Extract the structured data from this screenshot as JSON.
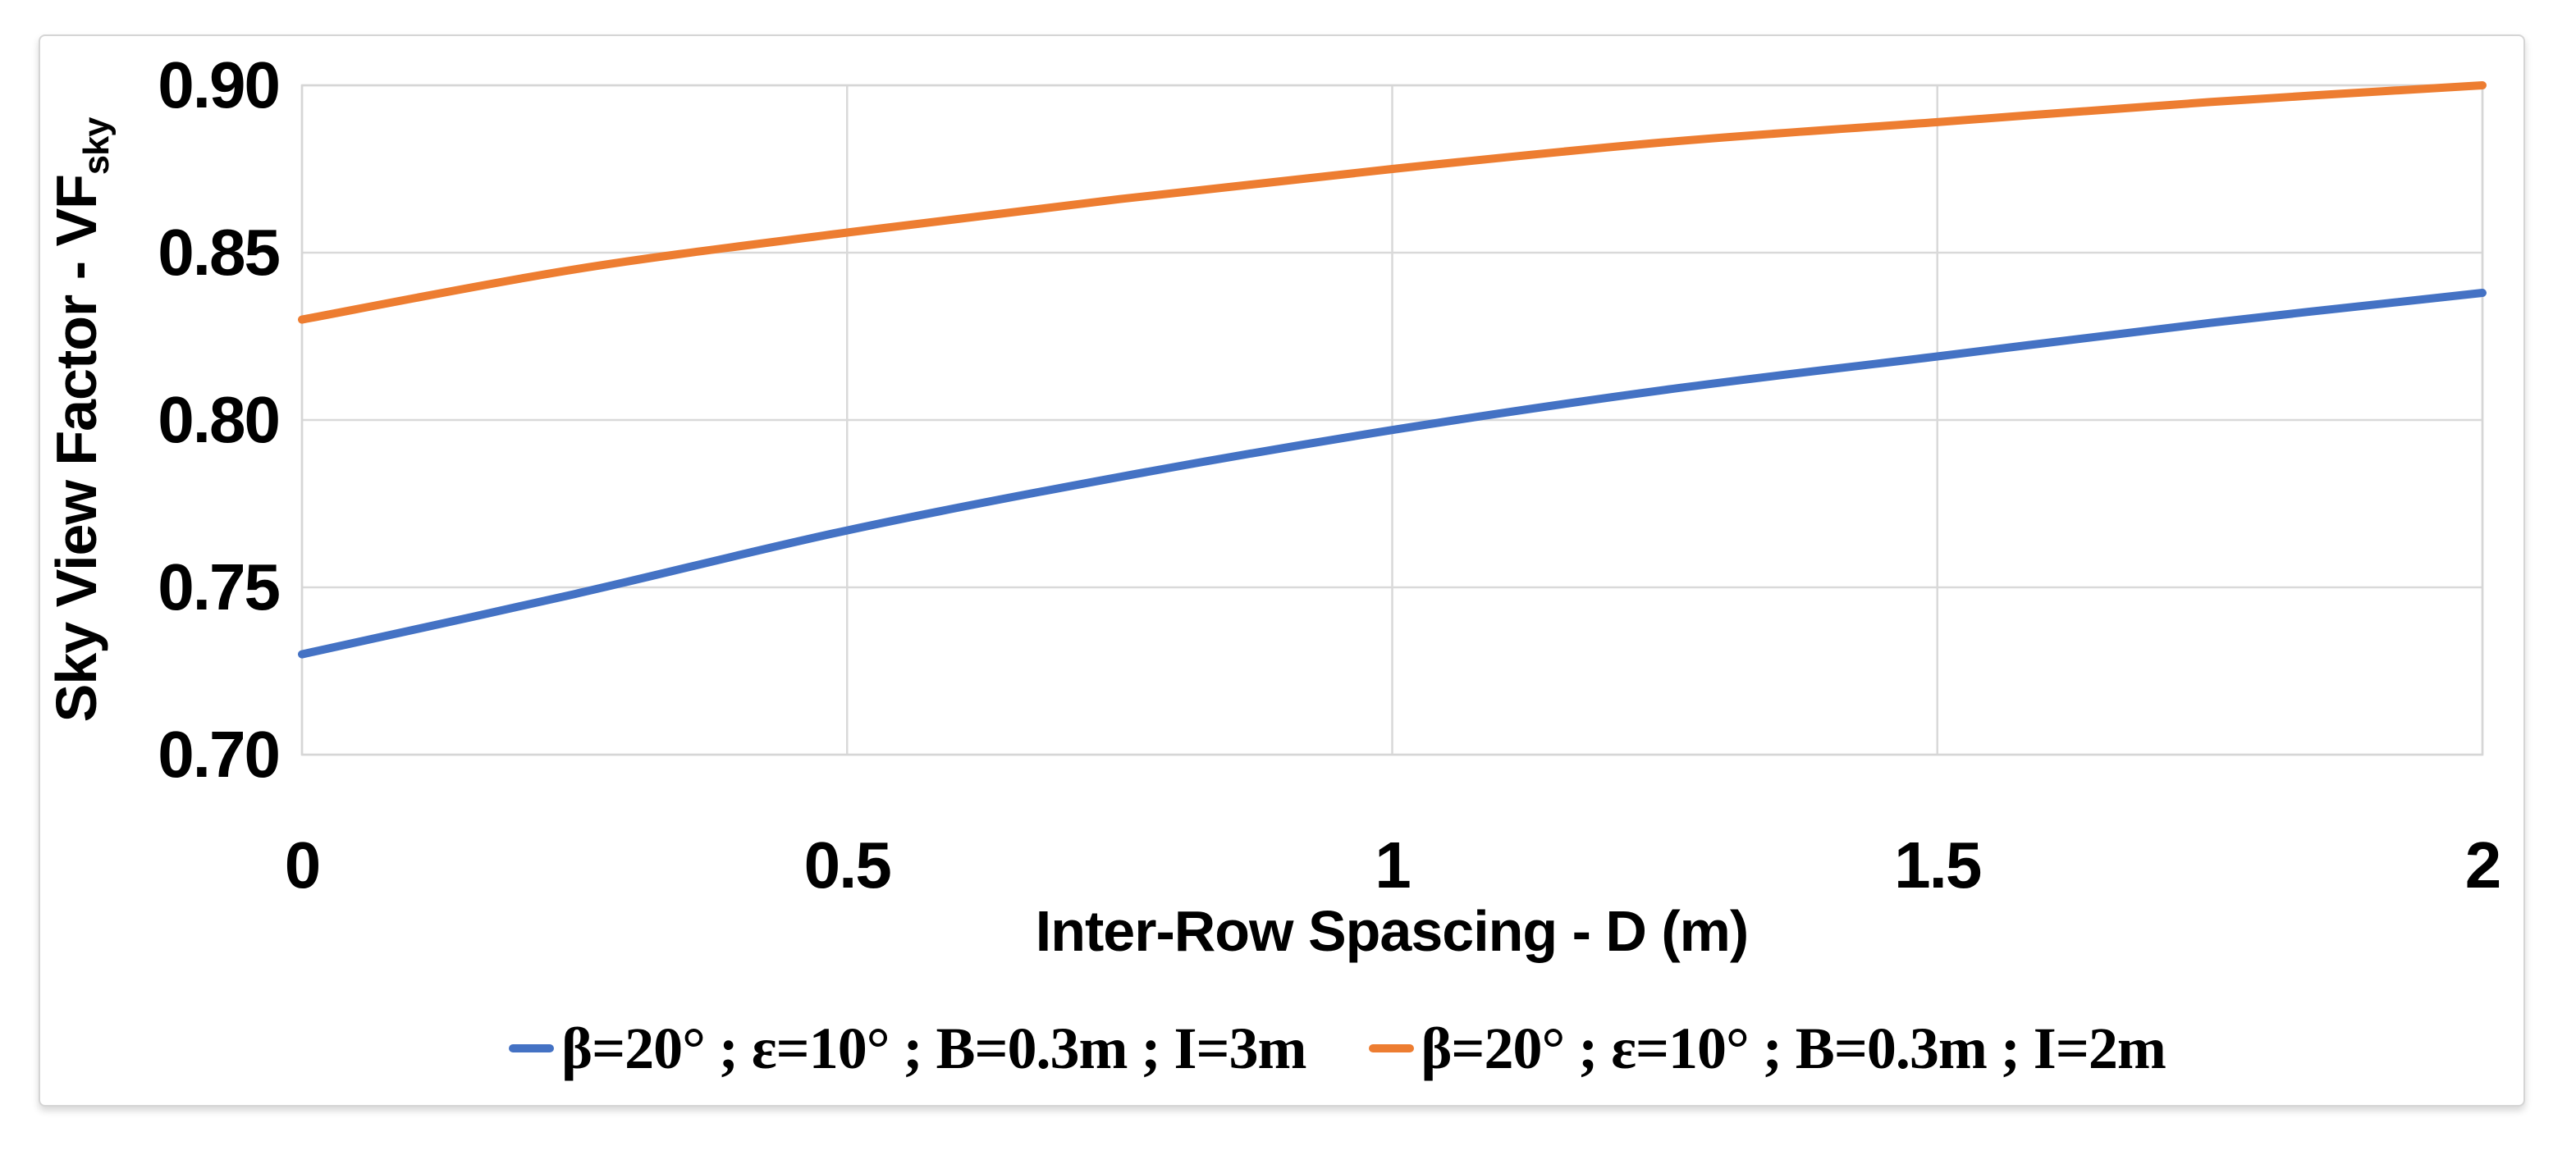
{
  "figure": {
    "background": "#ffffff",
    "frame_border_color": "#d5d5d5",
    "plot_border_color": "#d6d6d6",
    "gridline_color": "#d9d9d9",
    "text_color": "#000000"
  },
  "chart_data": {
    "type": "line",
    "title": "",
    "xlabel": "Inter-Row Spascing - D (m)",
    "ylabel": "Sky View Factor - VF",
    "ylabel_subscript": "sky",
    "xlim": [
      0,
      2
    ],
    "ylim": [
      0.7,
      0.9
    ],
    "grid": true,
    "legend_position": "bottom",
    "x": [
      0,
      0.25,
      0.5,
      0.75,
      1,
      1.25,
      1.5,
      1.75,
      2
    ],
    "series": [
      {
        "name": "β=20° ; ε=10° ; B=0.3m ; I=3m",
        "color": "#4472C4",
        "values": [
          0.73,
          0.748,
          0.767,
          0.783,
          0.797,
          0.809,
          0.819,
          0.829,
          0.838
        ]
      },
      {
        "name": "β=20° ; ε=10° ; B=0.3m ; I=2m",
        "color": "#ED7D31",
        "values": [
          0.83,
          0.845,
          0.856,
          0.866,
          0.875,
          0.883,
          0.889,
          0.895,
          0.9
        ]
      }
    ],
    "x_ticks": [
      {
        "value": 0,
        "label": "0"
      },
      {
        "value": 0.5,
        "label": "0.5"
      },
      {
        "value": 1,
        "label": "1"
      },
      {
        "value": 1.5,
        "label": "1.5"
      },
      {
        "value": 2,
        "label": "2"
      }
    ],
    "y_ticks": [
      {
        "value": 0.9,
        "label": "0.90"
      },
      {
        "value": 0.85,
        "label": "0.85"
      },
      {
        "value": 0.8,
        "label": "0.80"
      },
      {
        "value": 0.75,
        "label": "0.75"
      },
      {
        "value": 0.7,
        "label": "0.70"
      }
    ]
  }
}
